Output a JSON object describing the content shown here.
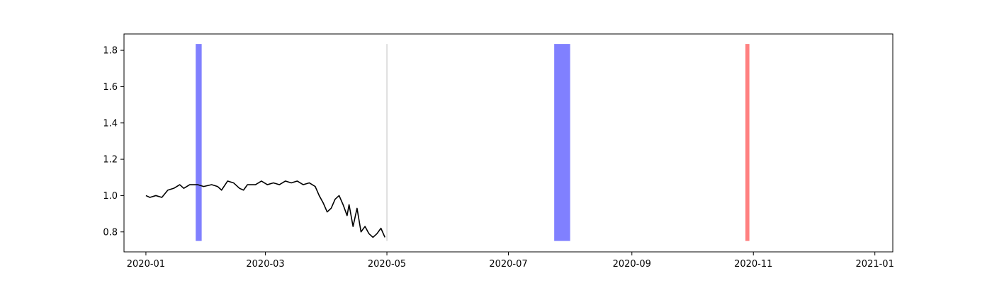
{
  "chart_data": {
    "type": "line",
    "title": "",
    "xlabel": "",
    "ylabel": "",
    "x_range": [
      "2019-12-21",
      "2021-01-10"
    ],
    "ylim": [
      0.69,
      1.89
    ],
    "grid": false,
    "x_ticks": [
      "2020-01",
      "2020-03",
      "2020-05",
      "2020-07",
      "2020-09",
      "2020-11",
      "2021-01"
    ],
    "y_ticks": [
      "0.8",
      "1.0",
      "1.2",
      "1.4",
      "1.6",
      "1.8"
    ],
    "line_color": "#000000",
    "highlights": [
      {
        "start": "2020-01-26",
        "end": "2020-01-28",
        "color": "#8080ff",
        "ymin": 0.75,
        "ymax": 1.835
      },
      {
        "start": "2020-07-24",
        "end": "2020-07-31",
        "color": "#8080ff",
        "ymin": 0.75,
        "ymax": 1.835
      },
      {
        "start": "2020-10-28",
        "end": "2020-10-29",
        "color": "#ff8080",
        "ymin": 0.75,
        "ymax": 1.835
      }
    ],
    "vlines": [
      {
        "date": "2020-05-01",
        "color": "#c0c0c0",
        "ymin": 0.75,
        "ymax": 1.835
      }
    ],
    "series": [
      {
        "points": [
          [
            "2020-01-01",
            1.0
          ],
          [
            "2020-01-03",
            0.99
          ],
          [
            "2020-01-06",
            1.0
          ],
          [
            "2020-01-09",
            0.99
          ],
          [
            "2020-01-12",
            1.03
          ],
          [
            "2020-01-15",
            1.04
          ],
          [
            "2020-01-18",
            1.06
          ],
          [
            "2020-01-20",
            1.04
          ],
          [
            "2020-01-23",
            1.06
          ],
          [
            "2020-01-27",
            1.06
          ],
          [
            "2020-01-30",
            1.05
          ],
          [
            "2020-02-03",
            1.06
          ],
          [
            "2020-02-06",
            1.05
          ],
          [
            "2020-02-08",
            1.03
          ],
          [
            "2020-02-11",
            1.08
          ],
          [
            "2020-02-14",
            1.07
          ],
          [
            "2020-02-17",
            1.04
          ],
          [
            "2020-02-19",
            1.03
          ],
          [
            "2020-02-21",
            1.06
          ],
          [
            "2020-02-25",
            1.06
          ],
          [
            "2020-02-28",
            1.08
          ],
          [
            "2020-03-02",
            1.06
          ],
          [
            "2020-03-05",
            1.07
          ],
          [
            "2020-03-08",
            1.06
          ],
          [
            "2020-03-11",
            1.08
          ],
          [
            "2020-03-14",
            1.07
          ],
          [
            "2020-03-17",
            1.08
          ],
          [
            "2020-03-20",
            1.06
          ],
          [
            "2020-03-23",
            1.07
          ],
          [
            "2020-03-26",
            1.05
          ],
          [
            "2020-03-28",
            1.0
          ],
          [
            "2020-03-30",
            0.96
          ],
          [
            "2020-04-01",
            0.91
          ],
          [
            "2020-04-03",
            0.93
          ],
          [
            "2020-04-05",
            0.98
          ],
          [
            "2020-04-07",
            1.0
          ],
          [
            "2020-04-09",
            0.95
          ],
          [
            "2020-04-11",
            0.89
          ],
          [
            "2020-04-12",
            0.95
          ],
          [
            "2020-04-14",
            0.83
          ],
          [
            "2020-04-16",
            0.93
          ],
          [
            "2020-04-18",
            0.8
          ],
          [
            "2020-04-20",
            0.83
          ],
          [
            "2020-04-22",
            0.79
          ],
          [
            "2020-04-24",
            0.77
          ],
          [
            "2020-04-26",
            0.79
          ],
          [
            "2020-04-28",
            0.82
          ],
          [
            "2020-04-30",
            0.77
          ]
        ]
      }
    ]
  }
}
